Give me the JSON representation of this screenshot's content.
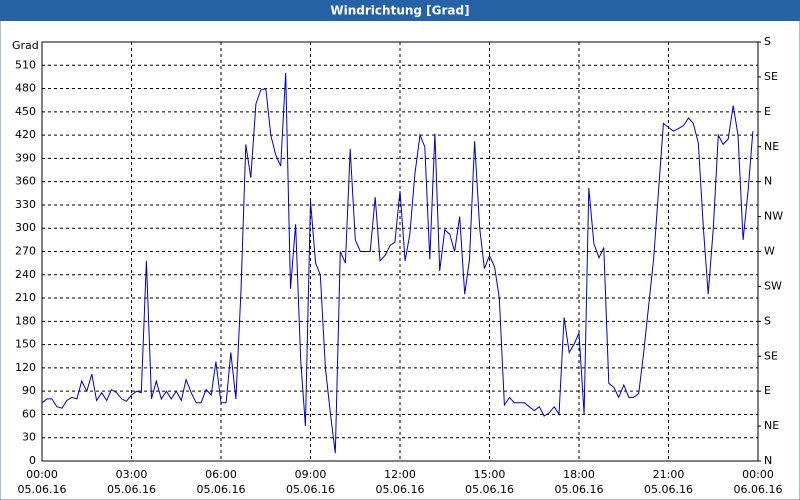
{
  "chart_data": {
    "type": "line",
    "title": "Windrichtung [Grad]",
    "ylabel": "Grad",
    "color": "#0000c8",
    "grid": true,
    "ylim": [
      0,
      540
    ],
    "yticks": [
      0,
      30,
      60,
      90,
      120,
      150,
      180,
      210,
      240,
      270,
      300,
      330,
      360,
      390,
      420,
      450,
      480,
      510
    ],
    "y2lim": [
      0,
      540
    ],
    "y2ticks": [
      {
        "value": 0,
        "label": "N"
      },
      {
        "value": 45,
        "label": "NE"
      },
      {
        "value": 90,
        "label": "E"
      },
      {
        "value": 135,
        "label": "SE"
      },
      {
        "value": 180,
        "label": "S"
      },
      {
        "value": 225,
        "label": "SW"
      },
      {
        "value": 270,
        "label": "W"
      },
      {
        "value": 315,
        "label": "NW"
      },
      {
        "value": 360,
        "label": "N"
      },
      {
        "value": 405,
        "label": "NE"
      },
      {
        "value": 450,
        "label": "E"
      },
      {
        "value": 495,
        "label": "SE"
      },
      {
        "value": 540,
        "label": "S"
      }
    ],
    "xlim": [
      0,
      24
    ],
    "xticks": [
      {
        "value": 0,
        "label": "00:00",
        "date": "05.06.16"
      },
      {
        "value": 3,
        "label": "03:00",
        "date": "05.06.16"
      },
      {
        "value": 6,
        "label": "06:00",
        "date": "05.06.16"
      },
      {
        "value": 9,
        "label": "09:00",
        "date": "05.06.16"
      },
      {
        "value": 12,
        "label": "12:00",
        "date": "05.06.16"
      },
      {
        "value": 15,
        "label": "15:00",
        "date": "05.06.16"
      },
      {
        "value": 18,
        "label": "18:00",
        "date": "05.06.16"
      },
      {
        "value": 21,
        "label": "21:00",
        "date": "05.06.16"
      },
      {
        "value": 24,
        "label": "00:00",
        "date": "06.06.16"
      }
    ],
    "x": [
      0.0,
      0.17,
      0.33,
      0.5,
      0.67,
      0.83,
      1.0,
      1.17,
      1.33,
      1.5,
      1.67,
      1.83,
      2.0,
      2.17,
      2.33,
      2.5,
      2.67,
      2.83,
      3.0,
      3.17,
      3.33,
      3.5,
      3.67,
      3.83,
      4.0,
      4.17,
      4.33,
      4.5,
      4.67,
      4.83,
      5.0,
      5.17,
      5.33,
      5.5,
      5.67,
      5.83,
      6.0,
      6.17,
      6.33,
      6.5,
      6.67,
      6.83,
      7.0,
      7.17,
      7.33,
      7.5,
      7.67,
      7.83,
      8.0,
      8.17,
      8.33,
      8.5,
      8.67,
      8.83,
      9.0,
      9.17,
      9.33,
      9.5,
      9.67,
      9.83,
      10.0,
      10.17,
      10.33,
      10.5,
      10.67,
      10.83,
      11.0,
      11.17,
      11.33,
      11.5,
      11.67,
      11.83,
      12.0,
      12.17,
      12.33,
      12.5,
      12.67,
      12.83,
      13.0,
      13.17,
      13.33,
      13.5,
      13.67,
      13.83,
      14.0,
      14.17,
      14.33,
      14.5,
      14.67,
      14.83,
      15.0,
      15.17,
      15.33,
      15.5,
      15.67,
      15.83,
      16.0,
      16.17,
      16.33,
      16.5,
      16.67,
      16.83,
      17.0,
      17.17,
      17.33,
      17.5,
      17.67,
      17.83,
      18.0,
      18.17,
      18.33,
      18.5,
      18.67,
      18.83,
      19.0,
      19.17,
      19.33,
      19.5,
      19.67,
      19.83,
      20.0,
      20.17,
      20.5,
      20.83,
      21.0,
      21.17,
      21.5,
      21.67,
      21.83,
      22.0,
      22.17,
      22.33,
      22.5,
      22.67,
      22.83,
      23.0,
      23.17,
      23.33,
      23.5,
      23.67,
      23.83
    ],
    "values": [
      75,
      80,
      80,
      70,
      68,
      78,
      82,
      80,
      103,
      90,
      112,
      78,
      88,
      78,
      92,
      88,
      80,
      77,
      85,
      90,
      88,
      258,
      80,
      103,
      80,
      90,
      80,
      90,
      78,
      105,
      88,
      75,
      75,
      92,
      85,
      128,
      75,
      75,
      140,
      80,
      220,
      408,
      365,
      460,
      478,
      480,
      420,
      395,
      380,
      500,
      222,
      305,
      130,
      45,
      335,
      255,
      240,
      120,
      60,
      10,
      270,
      255,
      402,
      285,
      270,
      270,
      270,
      340,
      258,
      265,
      278,
      282,
      348,
      258,
      292,
      370,
      420,
      405,
      260,
      422,
      245,
      298,
      292,
      270,
      315,
      215,
      260,
      412,
      300,
      248,
      265,
      250,
      210,
      72,
      82,
      75,
      75,
      75,
      70,
      65,
      70,
      58,
      62,
      70,
      60,
      185,
      140,
      150,
      165,
      60,
      352,
      280,
      262,
      275,
      100,
      95,
      82,
      98,
      82,
      82,
      87,
      140,
      260,
      435,
      430,
      425,
      432,
      442,
      435,
      410,
      300,
      215,
      300,
      420,
      408,
      415,
      458,
      420,
      285,
      350,
      425
    ]
  }
}
